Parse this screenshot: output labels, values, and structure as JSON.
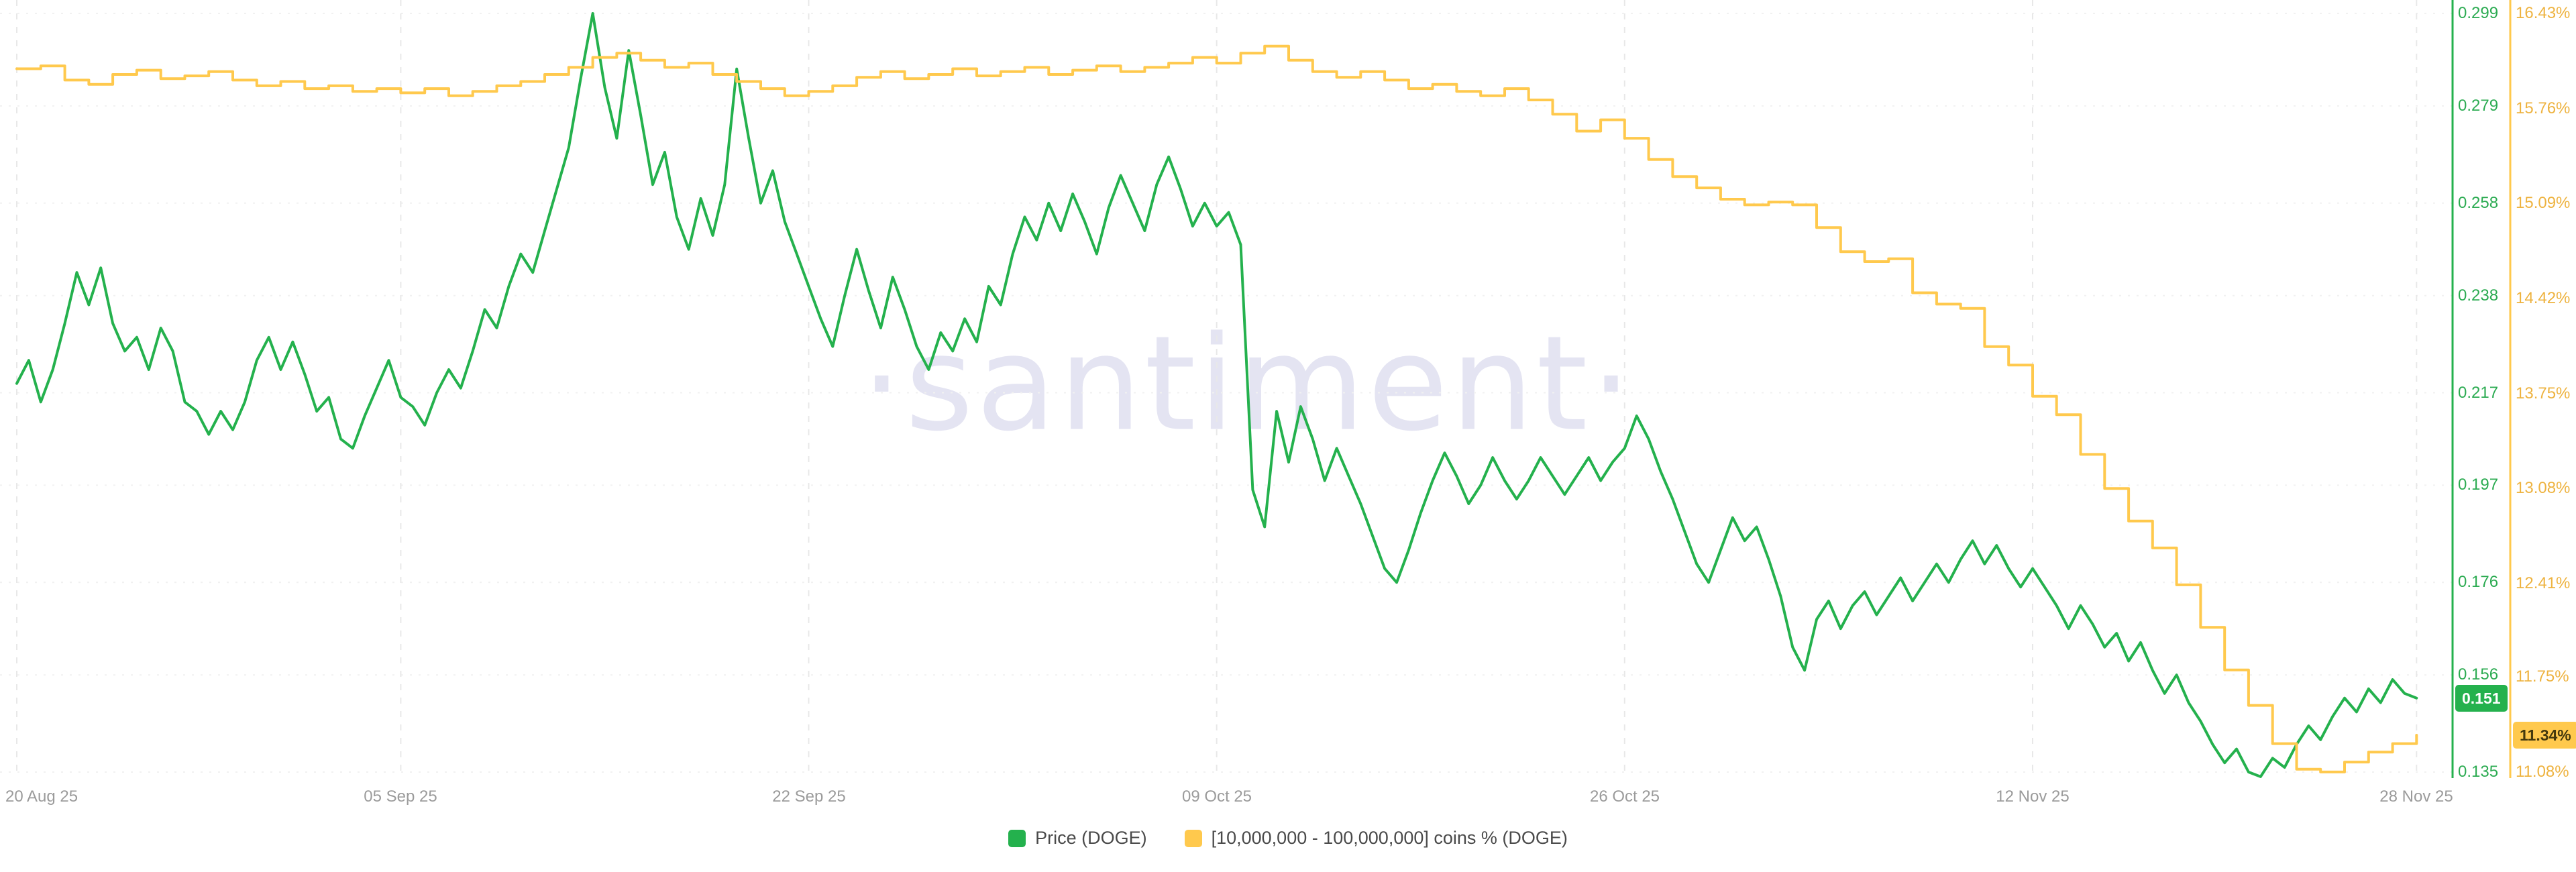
{
  "watermark": "·santiment·",
  "chart_data": {
    "type": "line",
    "title": "",
    "x_tick_labels": [
      "20 Aug 25",
      "05 Sep 25",
      "22 Sep 25",
      "09 Oct 25",
      "26 Oct 25",
      "12 Nov 25",
      "28 Nov 25"
    ],
    "x_tick_days": [
      0,
      16,
      33,
      50,
      67,
      84,
      100
    ],
    "x_domain_days": [
      -0.7,
      101.5
    ],
    "grid": {
      "h_color": "#f1f1f1",
      "v_color": "#e8e8e8"
    },
    "date_label_color": "#9b9b9b",
    "legend_text_color": "#4a4a4a",
    "axes": {
      "price": {
        "side": "right-inner",
        "ylim": [
          0.1337,
          0.3019
        ],
        "ticks": [
          0.299,
          0.279,
          0.258,
          0.238,
          0.217,
          0.197,
          0.176,
          0.156,
          0.135
        ],
        "tick_labels": [
          "0.299",
          "0.279",
          "0.258",
          "0.238",
          "0.217",
          "0.197",
          "0.176",
          "0.156",
          "0.135"
        ],
        "label_color": "#2cab52"
      },
      "pct": {
        "side": "right-outer",
        "ylim": [
          11.037,
          16.525
        ],
        "ticks": [
          16.43,
          15.76,
          15.09,
          14.42,
          13.75,
          13.08,
          12.41,
          11.75,
          11.08
        ],
        "tick_labels": [
          "16.43%",
          "15.76%",
          "15.09%",
          "14.42%",
          "13.75%",
          "13.08%",
          "12.41%",
          "11.75%",
          "11.08%"
        ],
        "label_color": "#eeb340"
      }
    },
    "series": [
      {
        "name": "Price (DOGE)",
        "axis": "price",
        "color": "#24b14d",
        "step": false,
        "days_per_point": 0.5,
        "current": "0.151",
        "current_value": 0.151,
        "badge_text_color": "#ffffff",
        "values": [
          0.219,
          0.224,
          0.215,
          0.222,
          0.232,
          0.243,
          0.236,
          0.244,
          0.232,
          0.226,
          0.229,
          0.222,
          0.231,
          0.226,
          0.215,
          0.213,
          0.208,
          0.213,
          0.209,
          0.215,
          0.224,
          0.229,
          0.222,
          0.228,
          0.221,
          0.213,
          0.216,
          0.207,
          0.205,
          0.212,
          0.218,
          0.224,
          0.216,
          0.214,
          0.21,
          0.217,
          0.222,
          0.218,
          0.226,
          0.235,
          0.231,
          0.24,
          0.247,
          0.243,
          0.252,
          0.261,
          0.27,
          0.285,
          0.299,
          0.283,
          0.272,
          0.291,
          0.277,
          0.262,
          0.269,
          0.255,
          0.248,
          0.259,
          0.251,
          0.262,
          0.287,
          0.272,
          0.258,
          0.265,
          0.254,
          0.247,
          0.24,
          0.233,
          0.227,
          0.238,
          0.248,
          0.239,
          0.231,
          0.242,
          0.235,
          0.227,
          0.222,
          0.23,
          0.226,
          0.233,
          0.228,
          0.24,
          0.236,
          0.247,
          0.255,
          0.25,
          0.258,
          0.252,
          0.26,
          0.254,
          0.247,
          0.257,
          0.264,
          0.258,
          0.252,
          0.262,
          0.268,
          0.261,
          0.253,
          0.258,
          0.253,
          0.256,
          0.249,
          0.196,
          0.188,
          0.213,
          0.202,
          0.214,
          0.207,
          0.198,
          0.205,
          0.199,
          0.193,
          0.186,
          0.179,
          0.176,
          0.183,
          0.191,
          0.198,
          0.204,
          0.199,
          0.193,
          0.197,
          0.203,
          0.198,
          0.194,
          0.198,
          0.203,
          0.199,
          0.195,
          0.199,
          0.203,
          0.198,
          0.202,
          0.205,
          0.212,
          0.207,
          0.2,
          0.194,
          0.187,
          0.18,
          0.176,
          0.183,
          0.19,
          0.185,
          0.188,
          0.181,
          0.173,
          0.162,
          0.157,
          0.168,
          0.172,
          0.166,
          0.171,
          0.174,
          0.169,
          0.173,
          0.177,
          0.172,
          0.176,
          0.18,
          0.176,
          0.181,
          0.185,
          0.18,
          0.184,
          0.179,
          0.175,
          0.179,
          0.175,
          0.171,
          0.166,
          0.171,
          0.167,
          0.162,
          0.165,
          0.159,
          0.163,
          0.157,
          0.152,
          0.156,
          0.15,
          0.146,
          0.141,
          0.137,
          0.14,
          0.135,
          0.134,
          0.138,
          0.136,
          0.141,
          0.145,
          0.142,
          0.147,
          0.151,
          0.148,
          0.153,
          0.15,
          0.155,
          0.152,
          0.151
        ]
      },
      {
        "name": "[10,000,000 - 100,000,000] coins % (DOGE)",
        "axis": "pct",
        "color": "#ffc94d",
        "step": true,
        "days_per_point": 1,
        "current": "11.34%",
        "current_value": 11.34,
        "badge_text_color": "#453a0e",
        "values": [
          16.04,
          16.06,
          15.96,
          15.93,
          16.0,
          16.03,
          15.97,
          15.99,
          16.02,
          15.96,
          15.92,
          15.95,
          15.9,
          15.92,
          15.88,
          15.9,
          15.87,
          15.9,
          15.85,
          15.88,
          15.92,
          15.95,
          16.0,
          16.05,
          16.12,
          16.15,
          16.1,
          16.05,
          16.08,
          16.0,
          15.95,
          15.9,
          15.85,
          15.88,
          15.92,
          15.98,
          16.02,
          15.97,
          16.0,
          16.04,
          15.99,
          16.02,
          16.05,
          16.0,
          16.03,
          16.06,
          16.02,
          16.05,
          16.08,
          16.12,
          16.08,
          16.15,
          16.2,
          16.1,
          16.02,
          15.98,
          16.02,
          15.96,
          15.9,
          15.93,
          15.88,
          15.85,
          15.9,
          15.82,
          15.72,
          15.6,
          15.68,
          15.55,
          15.4,
          15.28,
          15.2,
          15.12,
          15.08,
          15.1,
          15.08,
          14.92,
          14.75,
          14.68,
          14.7,
          14.46,
          14.38,
          14.35,
          14.08,
          13.95,
          13.73,
          13.6,
          13.32,
          13.08,
          12.85,
          12.66,
          12.4,
          12.1,
          11.8,
          11.55,
          11.28,
          11.1,
          11.08,
          11.15,
          11.22,
          11.28,
          11.34
        ]
      }
    ]
  }
}
